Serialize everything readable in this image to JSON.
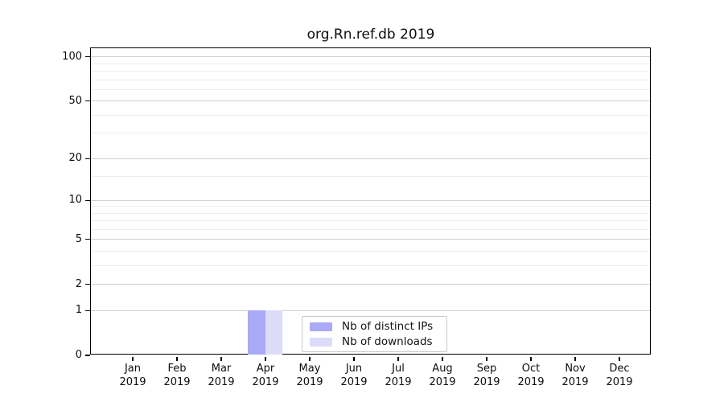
{
  "title": "org.Rn.ref.db 2019",
  "chart_data": {
    "type": "bar",
    "title": "org.Rn.ref.db 2019",
    "categories": [
      {
        "month": "Jan",
        "year": "2019"
      },
      {
        "month": "Feb",
        "year": "2019"
      },
      {
        "month": "Mar",
        "year": "2019"
      },
      {
        "month": "Apr",
        "year": "2019"
      },
      {
        "month": "May",
        "year": "2019"
      },
      {
        "month": "Jun",
        "year": "2019"
      },
      {
        "month": "Jul",
        "year": "2019"
      },
      {
        "month": "Aug",
        "year": "2019"
      },
      {
        "month": "Sep",
        "year": "2019"
      },
      {
        "month": "Oct",
        "year": "2019"
      },
      {
        "month": "Nov",
        "year": "2019"
      },
      {
        "month": "Dec",
        "year": "2019"
      }
    ],
    "series": [
      {
        "name": "Nb of distinct IPs",
        "color": "#aaaaf7",
        "values": [
          0,
          0,
          0,
          1,
          0,
          0,
          0,
          0,
          0,
          0,
          0,
          0
        ]
      },
      {
        "name": "Nb of downloads",
        "color": "#dcdcfa",
        "values": [
          0,
          0,
          0,
          1,
          0,
          0,
          0,
          0,
          0,
          0,
          0,
          0
        ]
      }
    ],
    "xlabel": "",
    "ylabel": "",
    "yscale": "log1p",
    "ylim": [
      0,
      115
    ],
    "yticks": [
      0,
      1,
      2,
      5,
      10,
      20,
      50,
      100
    ],
    "minor_gridlines": [
      3,
      4,
      6,
      7,
      8,
      9,
      15,
      30,
      40,
      60,
      70,
      80,
      90
    ],
    "grid": true,
    "legend_position": "inside-bottom-center"
  }
}
